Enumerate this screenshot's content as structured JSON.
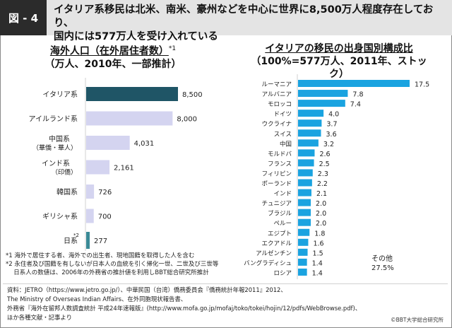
{
  "header": {
    "figure_label": "図 - 4",
    "title": "イタリア系移民は北米、南米、豪州などを中心に世界に8,500万人程度存在しており、\n国内には577万人を受け入れている"
  },
  "left_chart_title": {
    "line1": "海外人口（在外居住者数）",
    "line1_note": "*1",
    "line2": "（万人、2010年、一部推計）"
  },
  "right_chart_title": {
    "line1": "イタリアの移民の出身国別構成比",
    "line2": "（100%=577万人、2011年、ストック）"
  },
  "colors": {
    "highlight_bar": "#1f5566",
    "other_bar": "#d4d4f0",
    "japan_bar": "#3a8a96",
    "right_bar": "#1aa3e0"
  },
  "chart_data": [
    {
      "type": "bar",
      "orientation": "horizontal",
      "title": "海外人口（在外居住者数）*1（万人、2010年、一部推計）",
      "categories": [
        "イタリア系",
        "アイルランド系",
        "中国系（華僑・華人）",
        "インド系（印僑）",
        "韓国系",
        "ギリシャ系",
        "日系*2"
      ],
      "category_lines": [
        [
          "イタリア系"
        ],
        [
          "アイルランド系"
        ],
        [
          "中国系",
          "（華僑・華人）"
        ],
        [
          "インド系",
          "（印僑）"
        ],
        [
          "韓国系"
        ],
        [
          "ギリシャ系"
        ],
        [
          "日系"
        ]
      ],
      "category_superscripts": [
        "",
        "",
        "",
        "",
        "",
        "",
        "*2"
      ],
      "values": [
        8500,
        8000,
        4031,
        2161,
        726,
        700,
        277
      ],
      "value_labels": [
        "8,500",
        "8,000",
        "4,031",
        "2,161",
        "726",
        "700",
        "277"
      ],
      "bar_styles": [
        "highlight",
        "other",
        "other",
        "other",
        "other",
        "other",
        "japan"
      ],
      "unit": "万人",
      "xlim": [
        0,
        8500
      ]
    },
    {
      "type": "bar",
      "orientation": "horizontal",
      "title": "イタリアの移民の出身国別構成比（100%=577万人、2011年、ストック）",
      "categories": [
        "ルーマニア",
        "アルバニア",
        "モロッコ",
        "ドイツ",
        "ウクライナ",
        "スイス",
        "中国",
        "モルドバ",
        "フランス",
        "フィリピン",
        "ポーランド",
        "インド",
        "チュニジア",
        "ブラジル",
        "ペルー",
        "エジプト",
        "エクアドル",
        "アルゼンチン",
        "バングラディシュ",
        "ロシア"
      ],
      "values": [
        17.5,
        7.8,
        7.4,
        4.0,
        3.7,
        3.6,
        3.2,
        2.6,
        2.5,
        2.3,
        2.2,
        2.1,
        2.0,
        2.0,
        2.0,
        1.8,
        1.6,
        1.5,
        1.4,
        1.4
      ],
      "value_labels": [
        "17.5",
        "7.8",
        "7.4",
        "4.0",
        "3.7",
        "3.6",
        "3.2",
        "2.6",
        "2.5",
        "2.3",
        "2.2",
        "2.1",
        "2.0",
        "2.0",
        "2.0",
        "1.8",
        "1.6",
        "1.5",
        "1.4",
        "1.4"
      ],
      "unit": "%",
      "xlim": [
        0,
        17.5
      ],
      "annotation": {
        "label": "その他",
        "value": "27.5%"
      }
    }
  ],
  "notes": [
    "*1 海外で居住する者、海外での出生者、現地国籍を取得した人を含む",
    "*2 永住者及び国籍を有しないが日本人の血統を引く帰化一世、二世及び三世等",
    "　  日系人の数値は、2006年の外務省の推計値を利用しBBT総合研究所推計"
  ],
  "sources": [
    "資料：JETRO（https://www.jetro.go.jp/）、中華民国（台湾）僑務委員会『僑務統計年報2011』2012、",
    "The Ministry of Overseas Indian Affairs、在外同胞現状報告書、",
    "外務省『海外在留邦人数調査統計 平成24年速報版』(http://www.mofa.go.jp/mofaj/toko/tokei/hojin/12/pdfs/WebBrowse.pdf)、",
    "ほか各種文献・記事より"
  ],
  "copyright": "©BBT大学総合研究所"
}
